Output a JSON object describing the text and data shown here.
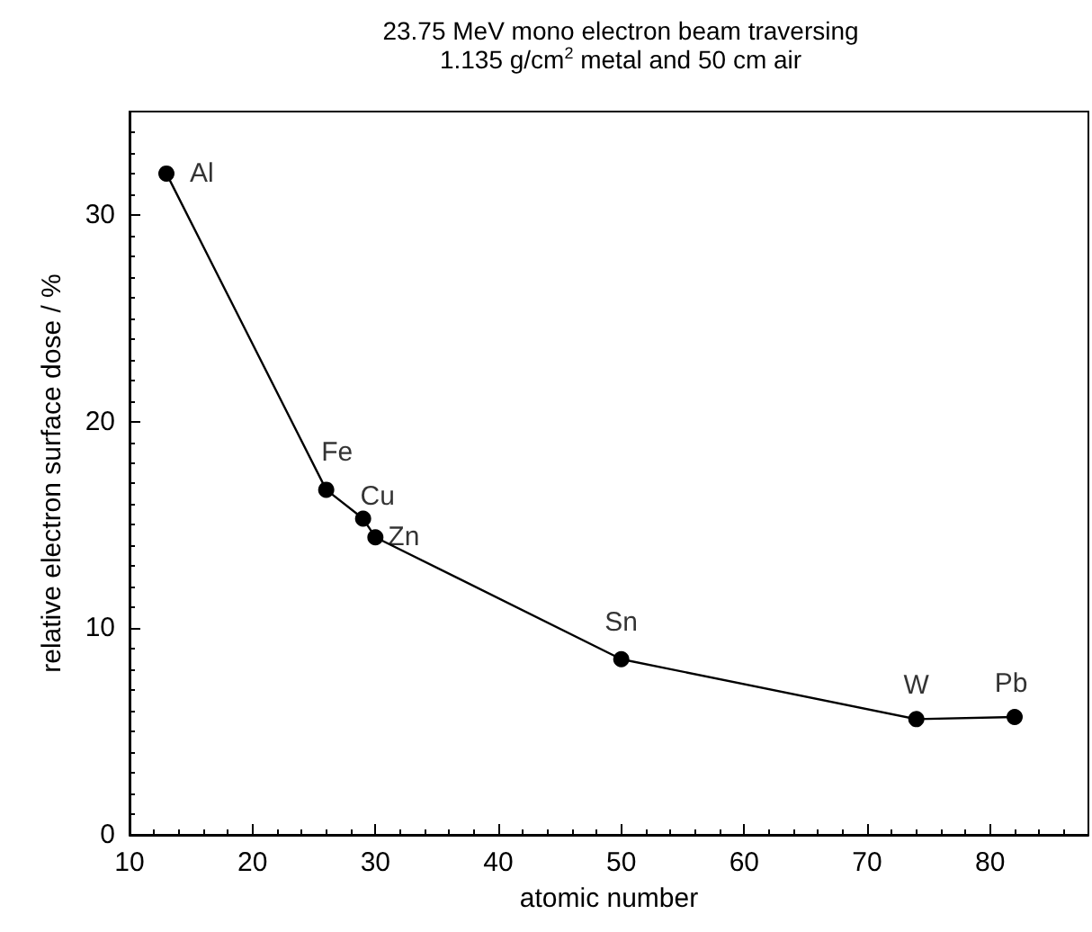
{
  "chart_data": {
    "type": "line",
    "title": "23.75 MeV mono electron beam traversing\n1.135 g/cm$^{2}$ metal and 50 cm air",
    "xlabel": "atomic number",
    "ylabel": "relative electron surface dose / %",
    "x": [
      13,
      26,
      29,
      30,
      50,
      74,
      82
    ],
    "series": [
      {
        "color": "#000000",
        "values": [
          32.0,
          16.7,
          15.3,
          14.4,
          8.5,
          5.6,
          5.7
        ]
      }
    ],
    "annotations": [
      {
        "text": "Al",
        "x": 13,
        "y": 32.0
      },
      {
        "text": "Fe",
        "x": 26,
        "y": 16.7
      },
      {
        "text": "Cu",
        "x": 29,
        "y": 15.3
      },
      {
        "text": "Zn",
        "x": 30,
        "y": 14.4
      },
      {
        "text": "Sn",
        "x": 50,
        "y": 8.5
      },
      {
        "text": "W",
        "x": 74,
        "y": 5.6
      },
      {
        "text": "Pb",
        "x": 82,
        "y": 5.7
      }
    ],
    "xlim": [
      10,
      88
    ],
    "xticks": [
      10,
      20,
      30,
      40,
      50,
      60,
      70,
      80
    ],
    "ylim": [
      0,
      35
    ],
    "yticks": [
      0,
      10,
      20,
      30
    ],
    "grid": false,
    "marker": "circle",
    "line_style": "solid"
  }
}
